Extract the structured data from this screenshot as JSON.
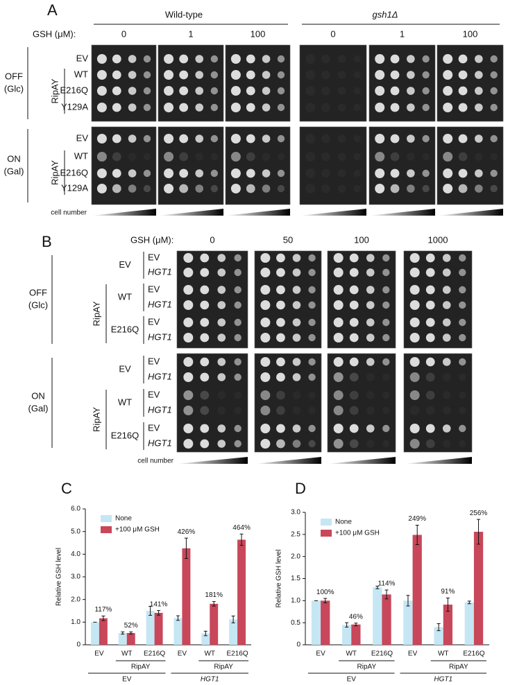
{
  "panel_a": {
    "label": "A",
    "strains": [
      "Wild-type",
      "gsh1Δ"
    ],
    "gsh_label": "GSH (μM):",
    "concentrations": [
      0,
      1,
      100
    ],
    "conditions": [
      {
        "name": "OFF",
        "sugar": "(Glc)"
      },
      {
        "name": "ON",
        "sugar": "(Gal)"
      }
    ],
    "rows": [
      "EV",
      "WT",
      "E216Q",
      "Y129A"
    ],
    "group": "RipAY",
    "cell_number": "cell number"
  },
  "panel_b": {
    "label": "B",
    "gsh_label": "GSH (μM):",
    "concentrations": [
      0,
      50,
      100,
      1000
    ],
    "conditions": [
      {
        "name": "OFF",
        "sugar": "(Glc)"
      },
      {
        "name": "ON",
        "sugar": "(Gal)"
      }
    ],
    "strains": [
      "EV",
      "WT",
      "E216Q"
    ],
    "plasmids": [
      "EV",
      "HGT1"
    ],
    "group": "RipAY",
    "cell_number": "cell number"
  },
  "chart_data": [
    {
      "type": "bar",
      "panel": "C",
      "y_label": "Relative GSH level",
      "categories": [
        "EV",
        "WT",
        "E216Q",
        "EV",
        "WT",
        "E216Q"
      ],
      "group_labels": [
        "RipAY",
        "RipAY",
        "EV",
        "HGT1"
      ],
      "series": [
        {
          "name": "None",
          "color": "#c5e6f3",
          "values": [
            1.0,
            0.52,
            1.5,
            1.18,
            0.5,
            1.12
          ],
          "errors": [
            0,
            0.05,
            0.2,
            0.1,
            0.1,
            0.15
          ]
        },
        {
          "name": "+100 μM GSH",
          "color": "#c8475a",
          "values": [
            1.17,
            0.52,
            1.41,
            4.26,
            1.81,
            4.64
          ],
          "errors": [
            0.1,
            0.05,
            0.1,
            0.45,
            0.1,
            0.25
          ],
          "value_labels": [
            "117%",
            "52%",
            "141%",
            "426%",
            "181%",
            "464%"
          ]
        }
      ],
      "ylim": [
        0,
        6
      ],
      "yticks": [
        0,
        {
          "value": 1,
          "label": "1.0"
        },
        {
          "value": 2,
          "label": "2.0"
        },
        {
          "value": 3,
          "label": "3.0"
        },
        {
          "value": 4,
          "label": "4.0"
        },
        {
          "value": 5,
          "label": "5.0"
        },
        {
          "value": 6,
          "label": "6.0"
        }
      ]
    },
    {
      "type": "bar",
      "panel": "D",
      "y_label": "Relative GSH level",
      "categories": [
        "EV",
        "WT",
        "E216Q",
        "EV",
        "WT",
        "E216Q"
      ],
      "group_labels": [
        "RipAY",
        "RipAY",
        "EV",
        "HGT1"
      ],
      "series": [
        {
          "name": "None",
          "color": "#c5e6f3",
          "values": [
            1.0,
            0.45,
            1.3,
            1.0,
            0.4,
            0.96
          ],
          "errors": [
            0,
            0.05,
            0.03,
            0.12,
            0.08,
            0.03
          ]
        },
        {
          "name": "+100 μM GSH",
          "color": "#c8475a",
          "values": [
            1.0,
            0.46,
            1.14,
            2.49,
            0.91,
            2.56
          ],
          "errors": [
            0.05,
            0.03,
            0.1,
            0.22,
            0.15,
            0.28
          ],
          "value_labels": [
            "100%",
            "46%",
            "114%",
            "249%",
            "91%",
            "256%"
          ]
        }
      ],
      "ylim": [
        0,
        3
      ],
      "yticks": [
        0,
        0.5,
        {
          "value": 1,
          "label": "1.0"
        },
        1.5,
        {
          "value": 2,
          "label": "2.0"
        },
        2.5,
        {
          "value": 3,
          "label": "3.0"
        }
      ]
    }
  ]
}
